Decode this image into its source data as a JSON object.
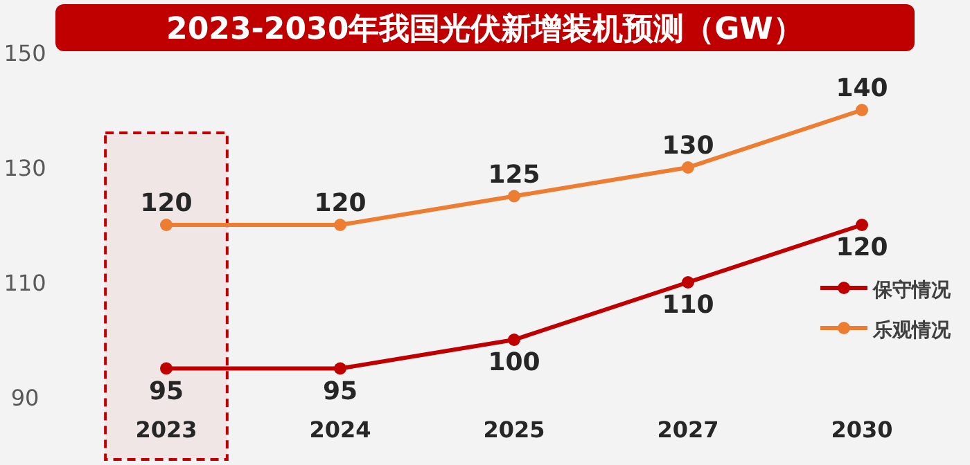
{
  "chart_data": {
    "type": "line",
    "title": "2023-2030年我国光伏新增装机预测（GW）",
    "categories": [
      "2023",
      "2024",
      "2025",
      "2027",
      "2030"
    ],
    "series": [
      {
        "name": "保守情况",
        "color": "#c00000",
        "values": [
          95,
          95,
          100,
          110,
          120
        ]
      },
      {
        "name": "乐观情况",
        "color": "#ed7d31",
        "values": [
          120,
          120,
          125,
          130,
          140
        ]
      }
    ],
    "ylim": [
      90,
      150
    ],
    "yticks": [
      90,
      110,
      130,
      150
    ],
    "grid": false,
    "legend": "right",
    "marker": "circle",
    "line_style": "solid",
    "data_labels": true,
    "bands": [
      {
        "axis": "x",
        "from": "2023",
        "to": "2023",
        "color": "#c00000"
      }
    ]
  }
}
